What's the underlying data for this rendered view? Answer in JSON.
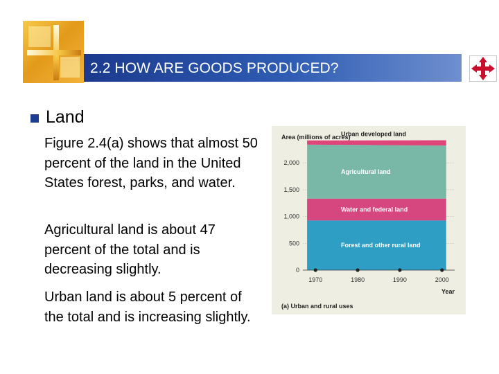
{
  "header": {
    "title": "2.2 HOW ARE GOODS PRODUCED?",
    "logo_icon": "golden-cross-logo-icon",
    "nav_icon": "four-arrow-nav-icon",
    "title_bar_color": "#1b3a8e",
    "nav_icon_color": "#c8102e"
  },
  "content": {
    "bullet": "Land",
    "paragraphs": [
      "Figure 2.4(a) shows that almost 50 percent of the land in the United States forest, parks, and water.",
      "Agricultural land is about 47 percent of the total and is decreasing slightly.",
      "Urban land is about 5 percent of the total and is increasing slightly."
    ]
  },
  "chart_data": {
    "type": "area",
    "title": "",
    "ylabel": "Area (millions of acres)",
    "xlabel": "Year",
    "caption": "(a) Urban and rural uses",
    "x": [
      1970,
      1980,
      1990,
      2000
    ],
    "xticks": [
      "1970",
      "1980",
      "1990",
      "2000"
    ],
    "yticks": [
      "0",
      "500",
      "1,000",
      "1,500",
      "2,000"
    ],
    "ylim": [
      0,
      2300
    ],
    "xlim": [
      1967,
      2003
    ],
    "stacked": true,
    "series": [
      {
        "name": "Forest and other rural land",
        "values": [
          925,
          925,
          925,
          925
        ],
        "color": "#2e9ec5"
      },
      {
        "name": "Water and federal land",
        "values": [
          410,
          410,
          410,
          410
        ],
        "color": "#d6477f"
      },
      {
        "name": "Agricultural land",
        "values": [
          1005,
          1000,
          995,
          990
        ],
        "color": "#79b8a7"
      },
      {
        "name": "Urban developed land",
        "values": [
          80,
          85,
          92,
          98
        ],
        "color": "#e0457a"
      }
    ],
    "grid": true
  }
}
